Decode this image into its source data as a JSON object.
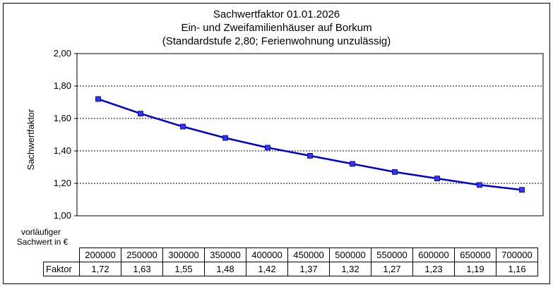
{
  "chart_data": {
    "type": "line",
    "title_lines": [
      "Sachwertfaktor 01.01.2026",
      "Ein- und Zweifamilienhäuser auf Borkum",
      "(Standardstufe 2,80; Ferienwohnung unzulässig)"
    ],
    "ylabel": "Sachwertfaktor",
    "xlabel": "vorläufiger Sachwert in €",
    "ylim": [
      1.0,
      2.0
    ],
    "yticks": [
      "1,00",
      "1,20",
      "1,40",
      "1,60",
      "1,80",
      "2,00"
    ],
    "ytick_values": [
      1.0,
      1.2,
      1.4,
      1.6,
      1.8,
      2.0
    ],
    "grid": true,
    "series": [
      {
        "x": [
          "200000",
          "250000",
          "300000",
          "350000",
          "400000",
          "450000",
          "500000",
          "550000",
          "600000",
          "650000",
          "700000"
        ],
        "values": [
          1.72,
          1.63,
          1.55,
          1.48,
          1.42,
          1.37,
          1.32,
          1.27,
          1.23,
          1.19,
          1.16
        ],
        "color": "#0000cc",
        "marker_color": "#3333ff"
      }
    ]
  },
  "table": {
    "corner_label_line1": "vorläufiger",
    "corner_label_line2": "Sachwert in €",
    "row_label": "Faktor",
    "columns": [
      "200000",
      "250000",
      "300000",
      "350000",
      "400000",
      "450000",
      "500000",
      "550000",
      "600000",
      "650000",
      "700000"
    ],
    "factors": [
      "1,72",
      "1,63",
      "1,55",
      "1,48",
      "1,42",
      "1,37",
      "1,32",
      "1,27",
      "1,23",
      "1,19",
      "1,16"
    ]
  }
}
